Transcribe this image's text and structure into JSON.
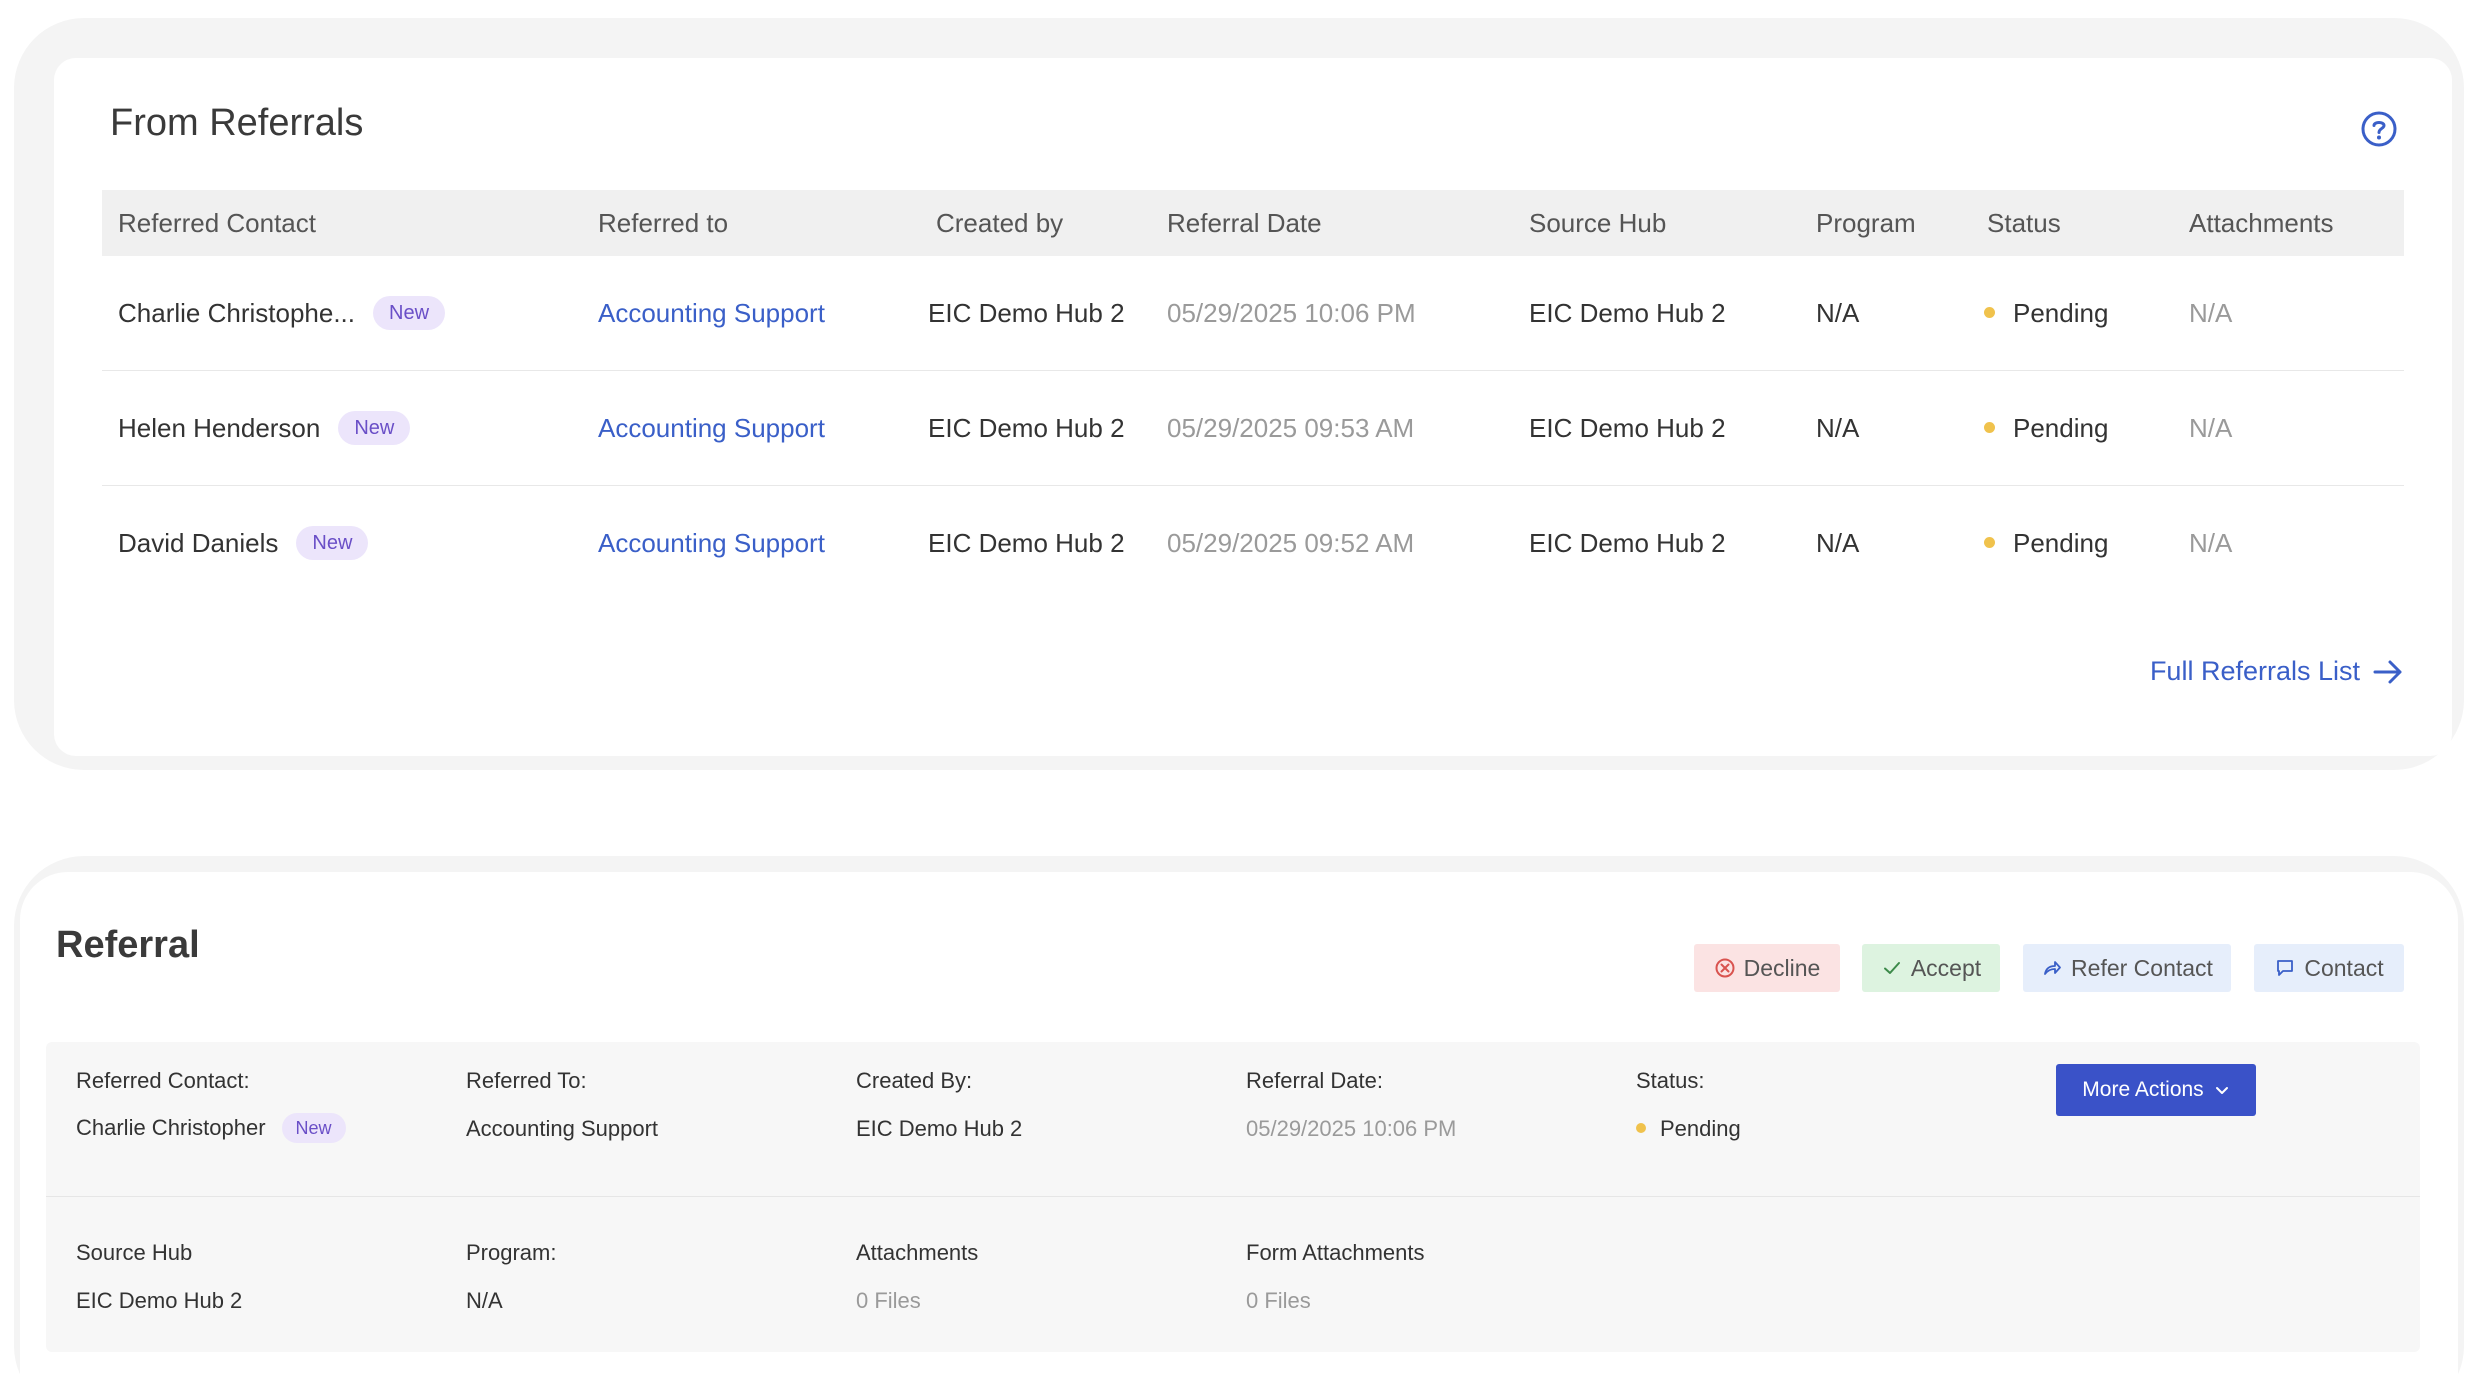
{
  "from_referrals": {
    "title": "From Referrals",
    "columns": [
      "Referred Contact",
      "Referred to",
      "Created by",
      "Referral Date",
      "Source Hub",
      "Program",
      "Status",
      "Attachments"
    ],
    "rows": [
      {
        "contact": "Charlie Christophe...",
        "badge": "New",
        "referred_to": "Accounting Support",
        "created_by": "EIC Demo Hub 2",
        "date": "05/29/2025 10:06 PM",
        "source_hub": "EIC Demo Hub 2",
        "program": "N/A",
        "status": "Pending",
        "attachments": "N/A"
      },
      {
        "contact": "Helen Henderson",
        "badge": "New",
        "referred_to": "Accounting Support",
        "created_by": "EIC Demo Hub 2",
        "date": "05/29/2025 09:53 AM",
        "source_hub": "EIC Demo Hub 2",
        "program": "N/A",
        "status": "Pending",
        "attachments": "N/A"
      },
      {
        "contact": "David Daniels",
        "badge": "New",
        "referred_to": "Accounting Support",
        "created_by": "EIC Demo Hub 2",
        "date": "05/29/2025 09:52 AM",
        "source_hub": "EIC Demo Hub 2",
        "program": "N/A",
        "status": "Pending",
        "attachments": "N/A"
      }
    ],
    "full_list_label": "Full Referrals List"
  },
  "referral": {
    "title": "Referral",
    "buttons": {
      "decline": "Decline",
      "accept": "Accept",
      "refer": "Refer Contact",
      "contact": "Contact"
    },
    "details": {
      "referred_contact_label": "Referred Contact:",
      "referred_contact_value": "Charlie Christopher",
      "badge": "New",
      "referred_to_label": "Referred To:",
      "referred_to_value": "Accounting Support",
      "created_by_label": "Created By:",
      "created_by_value": "EIC Demo Hub 2",
      "referral_date_label": "Referral Date:",
      "referral_date_value": "05/29/2025 10:06 PM",
      "status_label": "Status:",
      "status_value": "Pending",
      "more_actions": "More Actions",
      "source_hub_label": "Source Hub",
      "source_hub_value": "EIC Demo Hub 2",
      "program_label": "Program:",
      "program_value": "N/A",
      "attachments_label": "Attachments",
      "attachments_value": "0 Files",
      "form_attachments_label": "Form Attachments",
      "form_attachments_value": "0 Files"
    }
  },
  "colors": {
    "link": "#3a5fc8",
    "badge_bg": "#ece5fb",
    "badge_text": "#6a4fc7",
    "pending_dot": "#f0c24c",
    "primary_button": "#3a52c8"
  }
}
